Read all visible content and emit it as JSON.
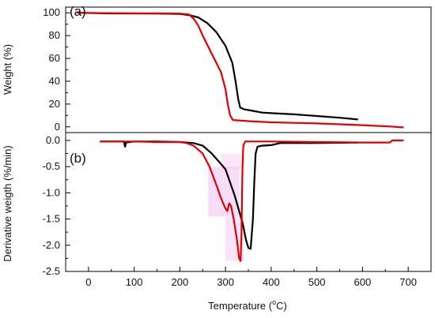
{
  "chart_data": [
    {
      "panel": "(a)",
      "type": "line",
      "ylabel": "Weight (%)",
      "xlim": [
        -50,
        750
      ],
      "ylim": [
        -5,
        105
      ],
      "y_ticks": [
        0,
        20,
        40,
        60,
        80,
        100
      ],
      "grid": false,
      "series": [
        {
          "color": "#000000",
          "points": [
            [
              -25,
              100
            ],
            [
              50,
              99.5
            ],
            [
              150,
              99.3
            ],
            [
              200,
              99
            ],
            [
              220,
              98
            ],
            [
              240,
              96
            ],
            [
              260,
              91
            ],
            [
              280,
              83
            ],
            [
              300,
              71
            ],
            [
              315,
              56
            ],
            [
              322,
              40
            ],
            [
              328,
              24
            ],
            [
              332,
              17
            ],
            [
              340,
              15.5
            ],
            [
              360,
              14
            ],
            [
              380,
              12.5
            ],
            [
              400,
              12
            ],
            [
              450,
              11
            ],
            [
              500,
              9.5
            ],
            [
              550,
              8
            ],
            [
              590,
              6.5
            ]
          ]
        },
        {
          "color": "#e00000",
          "points": [
            [
              -25,
              100
            ],
            [
              50,
              99.7
            ],
            [
              150,
              99.5
            ],
            [
              200,
              99.3
            ],
            [
              220,
              98.5
            ],
            [
              230,
              95
            ],
            [
              240,
              89
            ],
            [
              250,
              80
            ],
            [
              270,
              64
            ],
            [
              290,
              48
            ],
            [
              300,
              33
            ],
            [
              305,
              20
            ],
            [
              310,
              10
            ],
            [
              316,
              6
            ],
            [
              350,
              5
            ],
            [
              400,
              4
            ],
            [
              500,
              3
            ],
            [
              600,
              1.5
            ],
            [
              660,
              0.3
            ],
            [
              690,
              -0.5
            ]
          ]
        }
      ]
    },
    {
      "panel": "(b)",
      "type": "line",
      "ylabel": "Derivative weigth (%/min)",
      "xlabel": "Temperature (°C)",
      "xlim": [
        -50,
        750
      ],
      "ylim": [
        -2.5,
        0.15
      ],
      "x_ticks": [
        0,
        100,
        200,
        300,
        400,
        500,
        600,
        700
      ],
      "y_ticks": [
        -2.5,
        -2.0,
        -1.5,
        -1.0,
        -0.5,
        0.0
      ],
      "grid": false,
      "series": [
        {
          "color": "#000000",
          "points": [
            [
              25,
              -0.02
            ],
            [
              75,
              -0.02
            ],
            [
              78,
              -0.03
            ],
            [
              80,
              -0.12
            ],
            [
              82,
              -0.04
            ],
            [
              100,
              -0.02
            ],
            [
              150,
              -0.02
            ],
            [
              200,
              -0.03
            ],
            [
              230,
              -0.05
            ],
            [
              250,
              -0.1
            ],
            [
              270,
              -0.25
            ],
            [
              290,
              -0.45
            ],
            [
              300,
              -0.55
            ],
            [
              310,
              -0.8
            ],
            [
              320,
              -1.05
            ],
            [
              330,
              -1.35
            ],
            [
              338,
              -1.6
            ],
            [
              345,
              -1.9
            ],
            [
              350,
              -2.05
            ],
            [
              355,
              -2.07
            ],
            [
              360,
              -1.5
            ],
            [
              363,
              -0.8
            ],
            [
              366,
              -0.25
            ],
            [
              370,
              -0.12
            ],
            [
              380,
              -0.1
            ],
            [
              400,
              -0.09
            ],
            [
              420,
              -0.05
            ],
            [
              500,
              -0.05
            ],
            [
              590,
              -0.04
            ]
          ]
        },
        {
          "color": "#e00000",
          "points": [
            [
              25,
              -0.02
            ],
            [
              100,
              -0.02
            ],
            [
              150,
              -0.03
            ],
            [
              200,
              -0.03
            ],
            [
              215,
              -0.05
            ],
            [
              230,
              -0.1
            ],
            [
              250,
              -0.25
            ],
            [
              265,
              -0.5
            ],
            [
              280,
              -0.85
            ],
            [
              290,
              -1.1
            ],
            [
              300,
              -1.3
            ],
            [
              304,
              -1.35
            ],
            [
              308,
              -1.2
            ],
            [
              312,
              -1.25
            ],
            [
              318,
              -1.5
            ],
            [
              325,
              -1.9
            ],
            [
              330,
              -2.25
            ],
            [
              333,
              -2.3
            ],
            [
              335,
              -1.8
            ],
            [
              337,
              -0.6
            ],
            [
              339,
              -0.1
            ],
            [
              343,
              -0.02
            ],
            [
              400,
              -0.02
            ],
            [
              500,
              -0.03
            ],
            [
              600,
              -0.04
            ],
            [
              660,
              -0.04
            ],
            [
              665,
              0.0
            ],
            [
              690,
              0.0
            ]
          ]
        }
      ]
    }
  ],
  "axes": {
    "top_ylabel": "Weight (%)",
    "bottom_ylabel": "Derivative weigth (%/min)",
    "xlabel_prefix": "Temperature (",
    "xlabel_degree": "o",
    "xlabel_suffix": "C)"
  },
  "colors": {
    "series_a": "#000000",
    "series_b": "#e00000",
    "highlight": "#f0b3f0",
    "overlap": "#8a3a1c"
  }
}
